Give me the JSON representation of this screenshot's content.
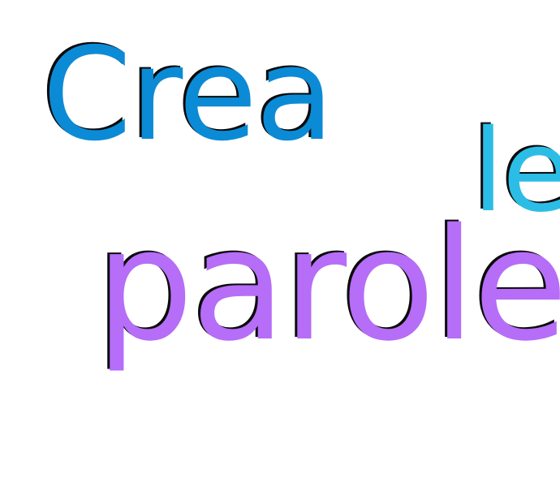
{
  "words": [
    {
      "text": "Crea",
      "color": "#0b8bd6"
    },
    {
      "text": "le",
      "color": "#2cbde6"
    },
    {
      "text": "parole",
      "color": "#b66df7"
    }
  ],
  "background_color": "#ffffff",
  "shadow_color": "#0a0a0a"
}
